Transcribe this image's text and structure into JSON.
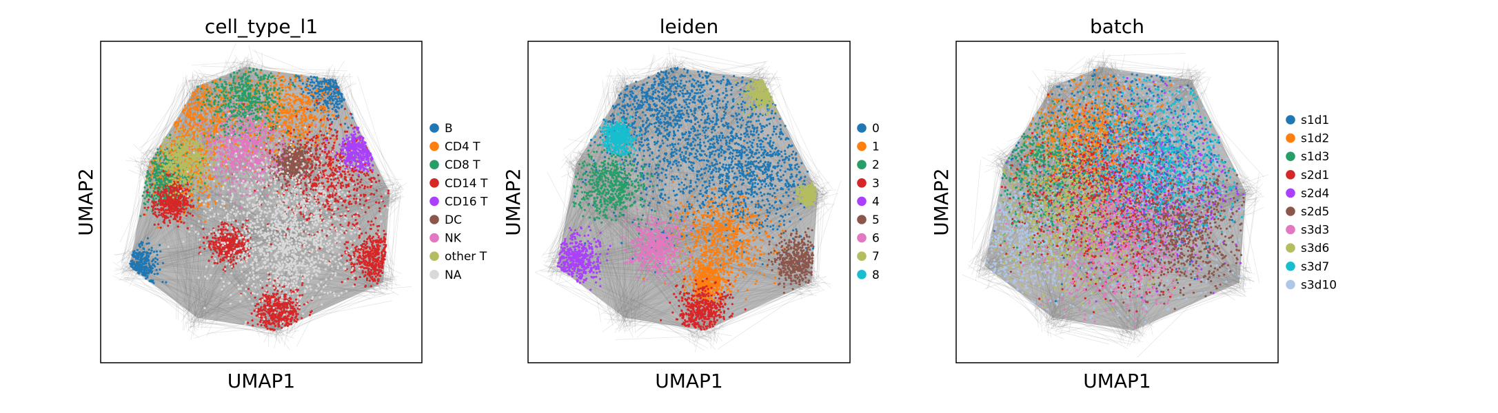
{
  "chart_data": [
    {
      "type": "scatter",
      "title": "cell_type_l1",
      "xlabel": "UMAP1",
      "ylabel": "UMAP2",
      "legend_placement": "right",
      "grid": false,
      "ticks": false,
      "categories": [
        "B",
        "CD4 T",
        "CD8 T",
        "CD14 T",
        "CD16 T",
        "DC",
        "NK",
        "other T",
        "NA"
      ],
      "colors": [
        "#1f77b4",
        "#ff7f0e",
        "#279e68",
        "#d62728",
        "#aa40fc",
        "#8c564b",
        "#e377c2",
        "#b5bd61",
        "#d9d9d9"
      ],
      "clusters": [
        {
          "category": "B",
          "x": 0.72,
          "y": 0.86,
          "spread": 0.05
        },
        {
          "category": "B",
          "x": 0.12,
          "y": 0.3,
          "spread": 0.03
        },
        {
          "category": "CD4 T",
          "x": 0.58,
          "y": 0.78,
          "spread": 0.07
        },
        {
          "category": "CD4 T",
          "x": 0.3,
          "y": 0.78,
          "spread": 0.08
        },
        {
          "category": "CD4 T",
          "x": 0.25,
          "y": 0.6,
          "spread": 0.06
        },
        {
          "category": "CD8 T",
          "x": 0.45,
          "y": 0.82,
          "spread": 0.06
        },
        {
          "category": "CD8 T",
          "x": 0.18,
          "y": 0.58,
          "spread": 0.05
        },
        {
          "category": "CD14 T",
          "x": 0.72,
          "y": 0.58,
          "spread": 0.09
        },
        {
          "category": "CD14 T",
          "x": 0.85,
          "y": 0.33,
          "spread": 0.04
        },
        {
          "category": "CD14 T",
          "x": 0.4,
          "y": 0.37,
          "spread": 0.03
        },
        {
          "category": "CD14 T",
          "x": 0.55,
          "y": 0.16,
          "spread": 0.04
        },
        {
          "category": "CD14 T",
          "x": 0.22,
          "y": 0.5,
          "spread": 0.03
        },
        {
          "category": "CD16 T",
          "x": 0.8,
          "y": 0.66,
          "spread": 0.03
        },
        {
          "category": "DC",
          "x": 0.6,
          "y": 0.62,
          "spread": 0.03
        },
        {
          "category": "NK",
          "x": 0.45,
          "y": 0.66,
          "spread": 0.06
        },
        {
          "category": "other T",
          "x": 0.26,
          "y": 0.63,
          "spread": 0.04
        },
        {
          "category": "NA",
          "x": 0.55,
          "y": 0.45,
          "spread": 0.12
        },
        {
          "category": "NA",
          "x": 0.6,
          "y": 0.35,
          "spread": 0.08
        }
      ]
    },
    {
      "type": "scatter",
      "title": "leiden",
      "xlabel": "UMAP1",
      "ylabel": "UMAP2",
      "legend_placement": "right",
      "grid": false,
      "ticks": false,
      "categories": [
        "0",
        "1",
        "2",
        "3",
        "4",
        "5",
        "6",
        "7",
        "8"
      ],
      "colors": [
        "#1f77b4",
        "#ff7f0e",
        "#279e68",
        "#d62728",
        "#aa40fc",
        "#8c564b",
        "#e377c2",
        "#b5bd61",
        "#17becf"
      ],
      "clusters": [
        {
          "category": "0",
          "x": 0.55,
          "y": 0.7,
          "spread": 0.16
        },
        {
          "category": "0",
          "x": 0.4,
          "y": 0.82,
          "spread": 0.1
        },
        {
          "category": "0",
          "x": 0.7,
          "y": 0.6,
          "spread": 0.1
        },
        {
          "category": "1",
          "x": 0.6,
          "y": 0.38,
          "spread": 0.07
        },
        {
          "category": "1",
          "x": 0.56,
          "y": 0.25,
          "spread": 0.03
        },
        {
          "category": "2",
          "x": 0.26,
          "y": 0.55,
          "spread": 0.05
        },
        {
          "category": "3",
          "x": 0.54,
          "y": 0.16,
          "spread": 0.04
        },
        {
          "category": "4",
          "x": 0.15,
          "y": 0.32,
          "spread": 0.04
        },
        {
          "category": "5",
          "x": 0.84,
          "y": 0.32,
          "spread": 0.04
        },
        {
          "category": "6",
          "x": 0.4,
          "y": 0.36,
          "spread": 0.04
        },
        {
          "category": "7",
          "x": 0.74,
          "y": 0.84,
          "spread": 0.03
        },
        {
          "category": "7",
          "x": 0.87,
          "y": 0.52,
          "spread": 0.015
        },
        {
          "category": "8",
          "x": 0.28,
          "y": 0.7,
          "spread": 0.025
        }
      ]
    },
    {
      "type": "scatter",
      "title": "batch",
      "xlabel": "UMAP1",
      "ylabel": "UMAP2",
      "legend_placement": "right",
      "grid": false,
      "ticks": false,
      "categories": [
        "s1d1",
        "s1d2",
        "s1d3",
        "s2d1",
        "s2d4",
        "s2d5",
        "s3d3",
        "s3d6",
        "s3d7",
        "s3d10"
      ],
      "colors": [
        "#1f77b4",
        "#ff7f0e",
        "#279e68",
        "#d62728",
        "#aa40fc",
        "#8c564b",
        "#e377c2",
        "#b5bd61",
        "#17becf",
        "#aec7e8"
      ],
      "clusters": [
        {
          "category": "s3d10",
          "x": 0.55,
          "y": 0.6,
          "spread": 0.2
        },
        {
          "category": "s2d4",
          "x": 0.62,
          "y": 0.55,
          "spread": 0.12
        },
        {
          "category": "s1d1",
          "x": 0.5,
          "y": 0.65,
          "spread": 0.15
        },
        {
          "category": "s3d10",
          "x": 0.2,
          "y": 0.4,
          "spread": 0.1
        },
        {
          "category": "s1d3",
          "x": 0.3,
          "y": 0.6,
          "spread": 0.1
        },
        {
          "category": "s1d2",
          "x": 0.4,
          "y": 0.7,
          "spread": 0.1
        },
        {
          "category": "s2d1",
          "x": 0.45,
          "y": 0.5,
          "spread": 0.12
        },
        {
          "category": "s2d5",
          "x": 0.7,
          "y": 0.4,
          "spread": 0.1
        },
        {
          "category": "s3d3",
          "x": 0.5,
          "y": 0.4,
          "spread": 0.12
        },
        {
          "category": "s3d6",
          "x": 0.35,
          "y": 0.45,
          "spread": 0.12
        },
        {
          "category": "s3d7",
          "x": 0.65,
          "y": 0.65,
          "spread": 0.12
        }
      ]
    }
  ]
}
